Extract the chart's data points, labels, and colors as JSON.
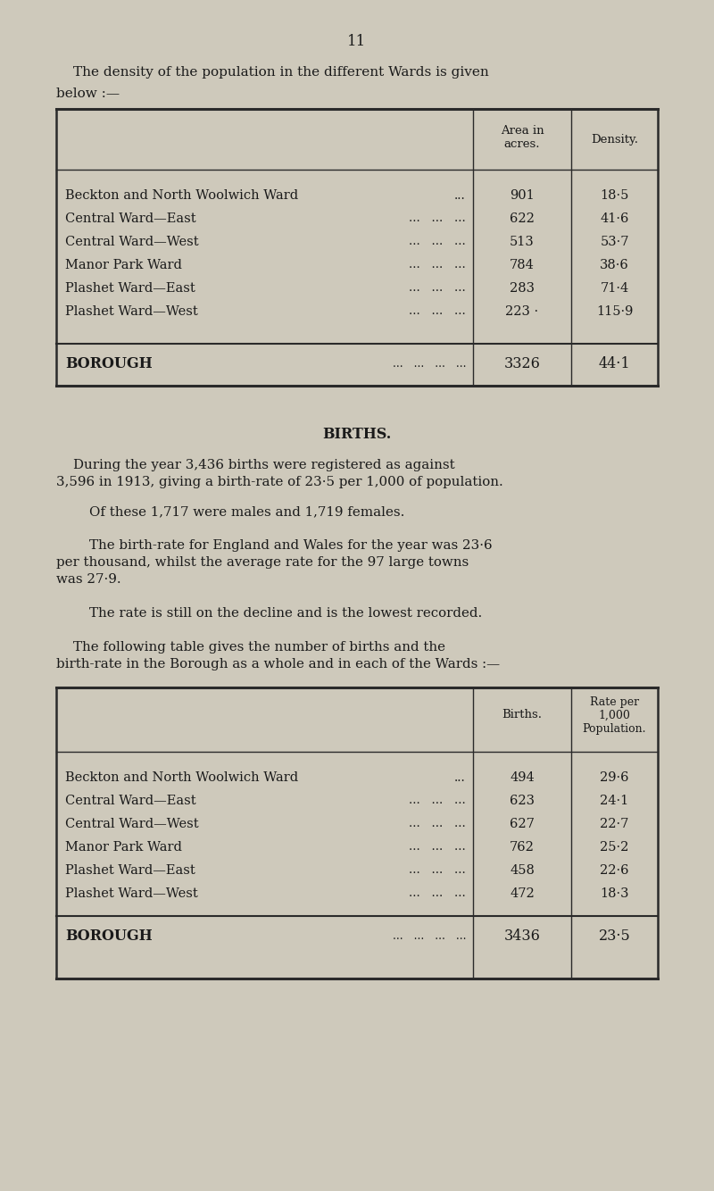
{
  "bg_color": "#cec9bb",
  "text_color": "#1a1a1a",
  "page_number": "11",
  "table1": {
    "col2_header": "Area in\nacres.",
    "col3_header": "Density.",
    "rows": [
      [
        "Beckton and North Woolwich Ward",
        "...",
        "901",
        "18·5"
      ],
      [
        "Central Ward—East",
        "...   ...   ...",
        "622",
        "41·6"
      ],
      [
        "Central Ward—West",
        "...   ...   ...",
        "513",
        "53·7"
      ],
      [
        "Manor Park Ward",
        "...   ...   ...",
        "784",
        "38·6"
      ],
      [
        "Plashet Ward—East",
        "...   ...   ...",
        "283",
        "71·4"
      ],
      [
        "Plashet Ward—West",
        "...   ...   ...",
        "223 ·",
        "115·9"
      ]
    ],
    "borough_row": [
      "BOROUGH",
      "...   ...   ...   ...",
      "3326",
      "44·1"
    ]
  },
  "section_title": "BIRTHS.",
  "table2": {
    "col2_header": "Births.",
    "col3_header": "Rate per\n1,000\nPopulation.",
    "rows": [
      [
        "Beckton and North Woolwich Ward",
        "...",
        "494",
        "29·6"
      ],
      [
        "Central Ward—East",
        "...   ...   ...",
        "623",
        "24·1"
      ],
      [
        "Central Ward—West",
        "...   ...   ...",
        "627",
        "22·7"
      ],
      [
        "Manor Park Ward",
        "...   ...   ...",
        "762",
        "25·2"
      ],
      [
        "Plashet Ward—East",
        "...   ...   ...",
        "458",
        "22·6"
      ],
      [
        "Plashet Ward—West",
        "...   ...   ...",
        "472",
        "18·3"
      ]
    ],
    "borough_row": [
      "BOROUGH",
      "...   ...   ...   ...",
      "3436",
      "23·5"
    ]
  }
}
